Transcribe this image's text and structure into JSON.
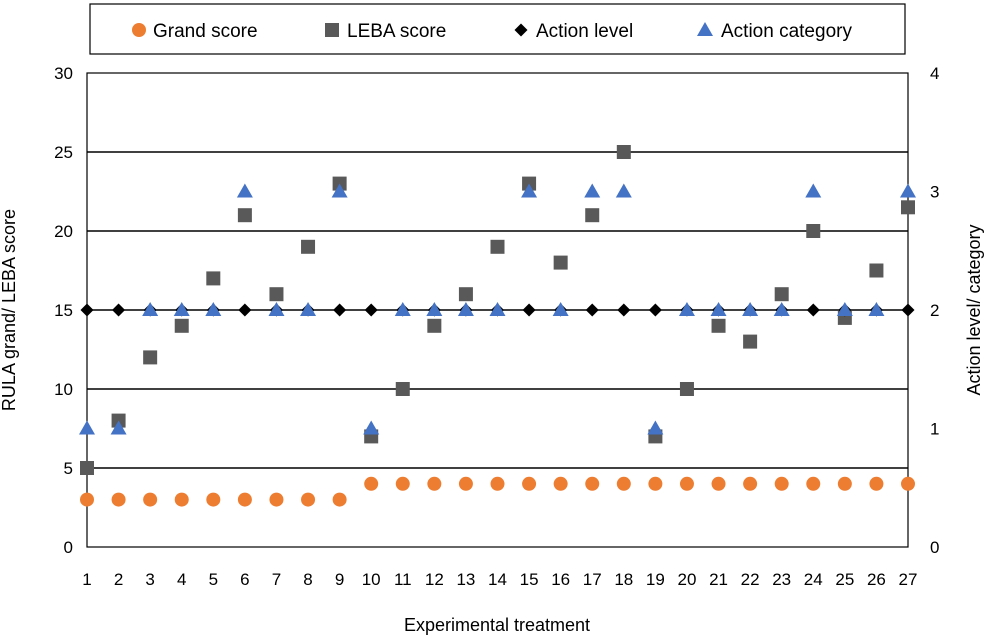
{
  "chart_data": {
    "type": "scatter",
    "xlabel": "Experimental treatment",
    "ylabel_left": "RULA grand/ LEBA score",
    "ylabel_right": "Action level/ category",
    "ylim_left": [
      0,
      30
    ],
    "ylim_right": [
      0,
      4
    ],
    "yticks_left": [
      "0",
      "5",
      "10",
      "15",
      "20",
      "25",
      "30"
    ],
    "yticks_right": [
      "0",
      "1",
      "2",
      "3",
      "4"
    ],
    "grid": true,
    "legend_position": "top",
    "x": [
      1,
      2,
      3,
      4,
      5,
      6,
      7,
      8,
      9,
      10,
      11,
      12,
      13,
      14,
      15,
      16,
      17,
      18,
      19,
      20,
      21,
      22,
      23,
      24,
      25,
      26,
      27
    ],
    "x_labels": [
      "1",
      "2",
      "3",
      "4",
      "5",
      "6",
      "7",
      "8",
      "9",
      "10",
      "11",
      "12",
      "13",
      "14",
      "15",
      "16",
      "17",
      "18",
      "19",
      "20",
      "21",
      "22",
      "23",
      "24",
      "25",
      "26",
      "27"
    ],
    "series": [
      {
        "name": "Grand score",
        "axis": "left",
        "marker": "circle",
        "color": "#ED7D31",
        "values": [
          3,
          3,
          3,
          3,
          3,
          3,
          3,
          3,
          3,
          4,
          4,
          4,
          4,
          4,
          4,
          4,
          4,
          4,
          4,
          4,
          4,
          4,
          4,
          4,
          4,
          4,
          4
        ]
      },
      {
        "name": "LEBA score",
        "axis": "left",
        "marker": "square",
        "color": "#595959",
        "values": [
          5,
          8,
          12,
          14,
          17,
          21,
          16,
          19,
          23,
          7,
          10,
          14,
          16,
          19,
          23,
          18,
          21,
          25,
          7,
          10,
          14,
          13,
          16,
          20,
          14.5,
          17.5,
          21.5
        ]
      },
      {
        "name": "Action level",
        "axis": "right",
        "marker": "diamond",
        "color": "#000000",
        "values": [
          2,
          2,
          2,
          2,
          2,
          2,
          2,
          2,
          2,
          2,
          2,
          2,
          2,
          2,
          2,
          2,
          2,
          2,
          2,
          2,
          2,
          2,
          2,
          2,
          2,
          2,
          2
        ]
      },
      {
        "name": "Action category",
        "axis": "right",
        "marker": "triangle",
        "color": "#4472C4",
        "values": [
          1,
          1,
          2,
          2,
          2,
          3,
          2,
          2,
          3,
          1,
          2,
          2,
          2,
          2,
          3,
          2,
          3,
          3,
          1,
          2,
          2,
          2,
          2,
          3,
          2,
          2,
          3
        ]
      }
    ]
  }
}
